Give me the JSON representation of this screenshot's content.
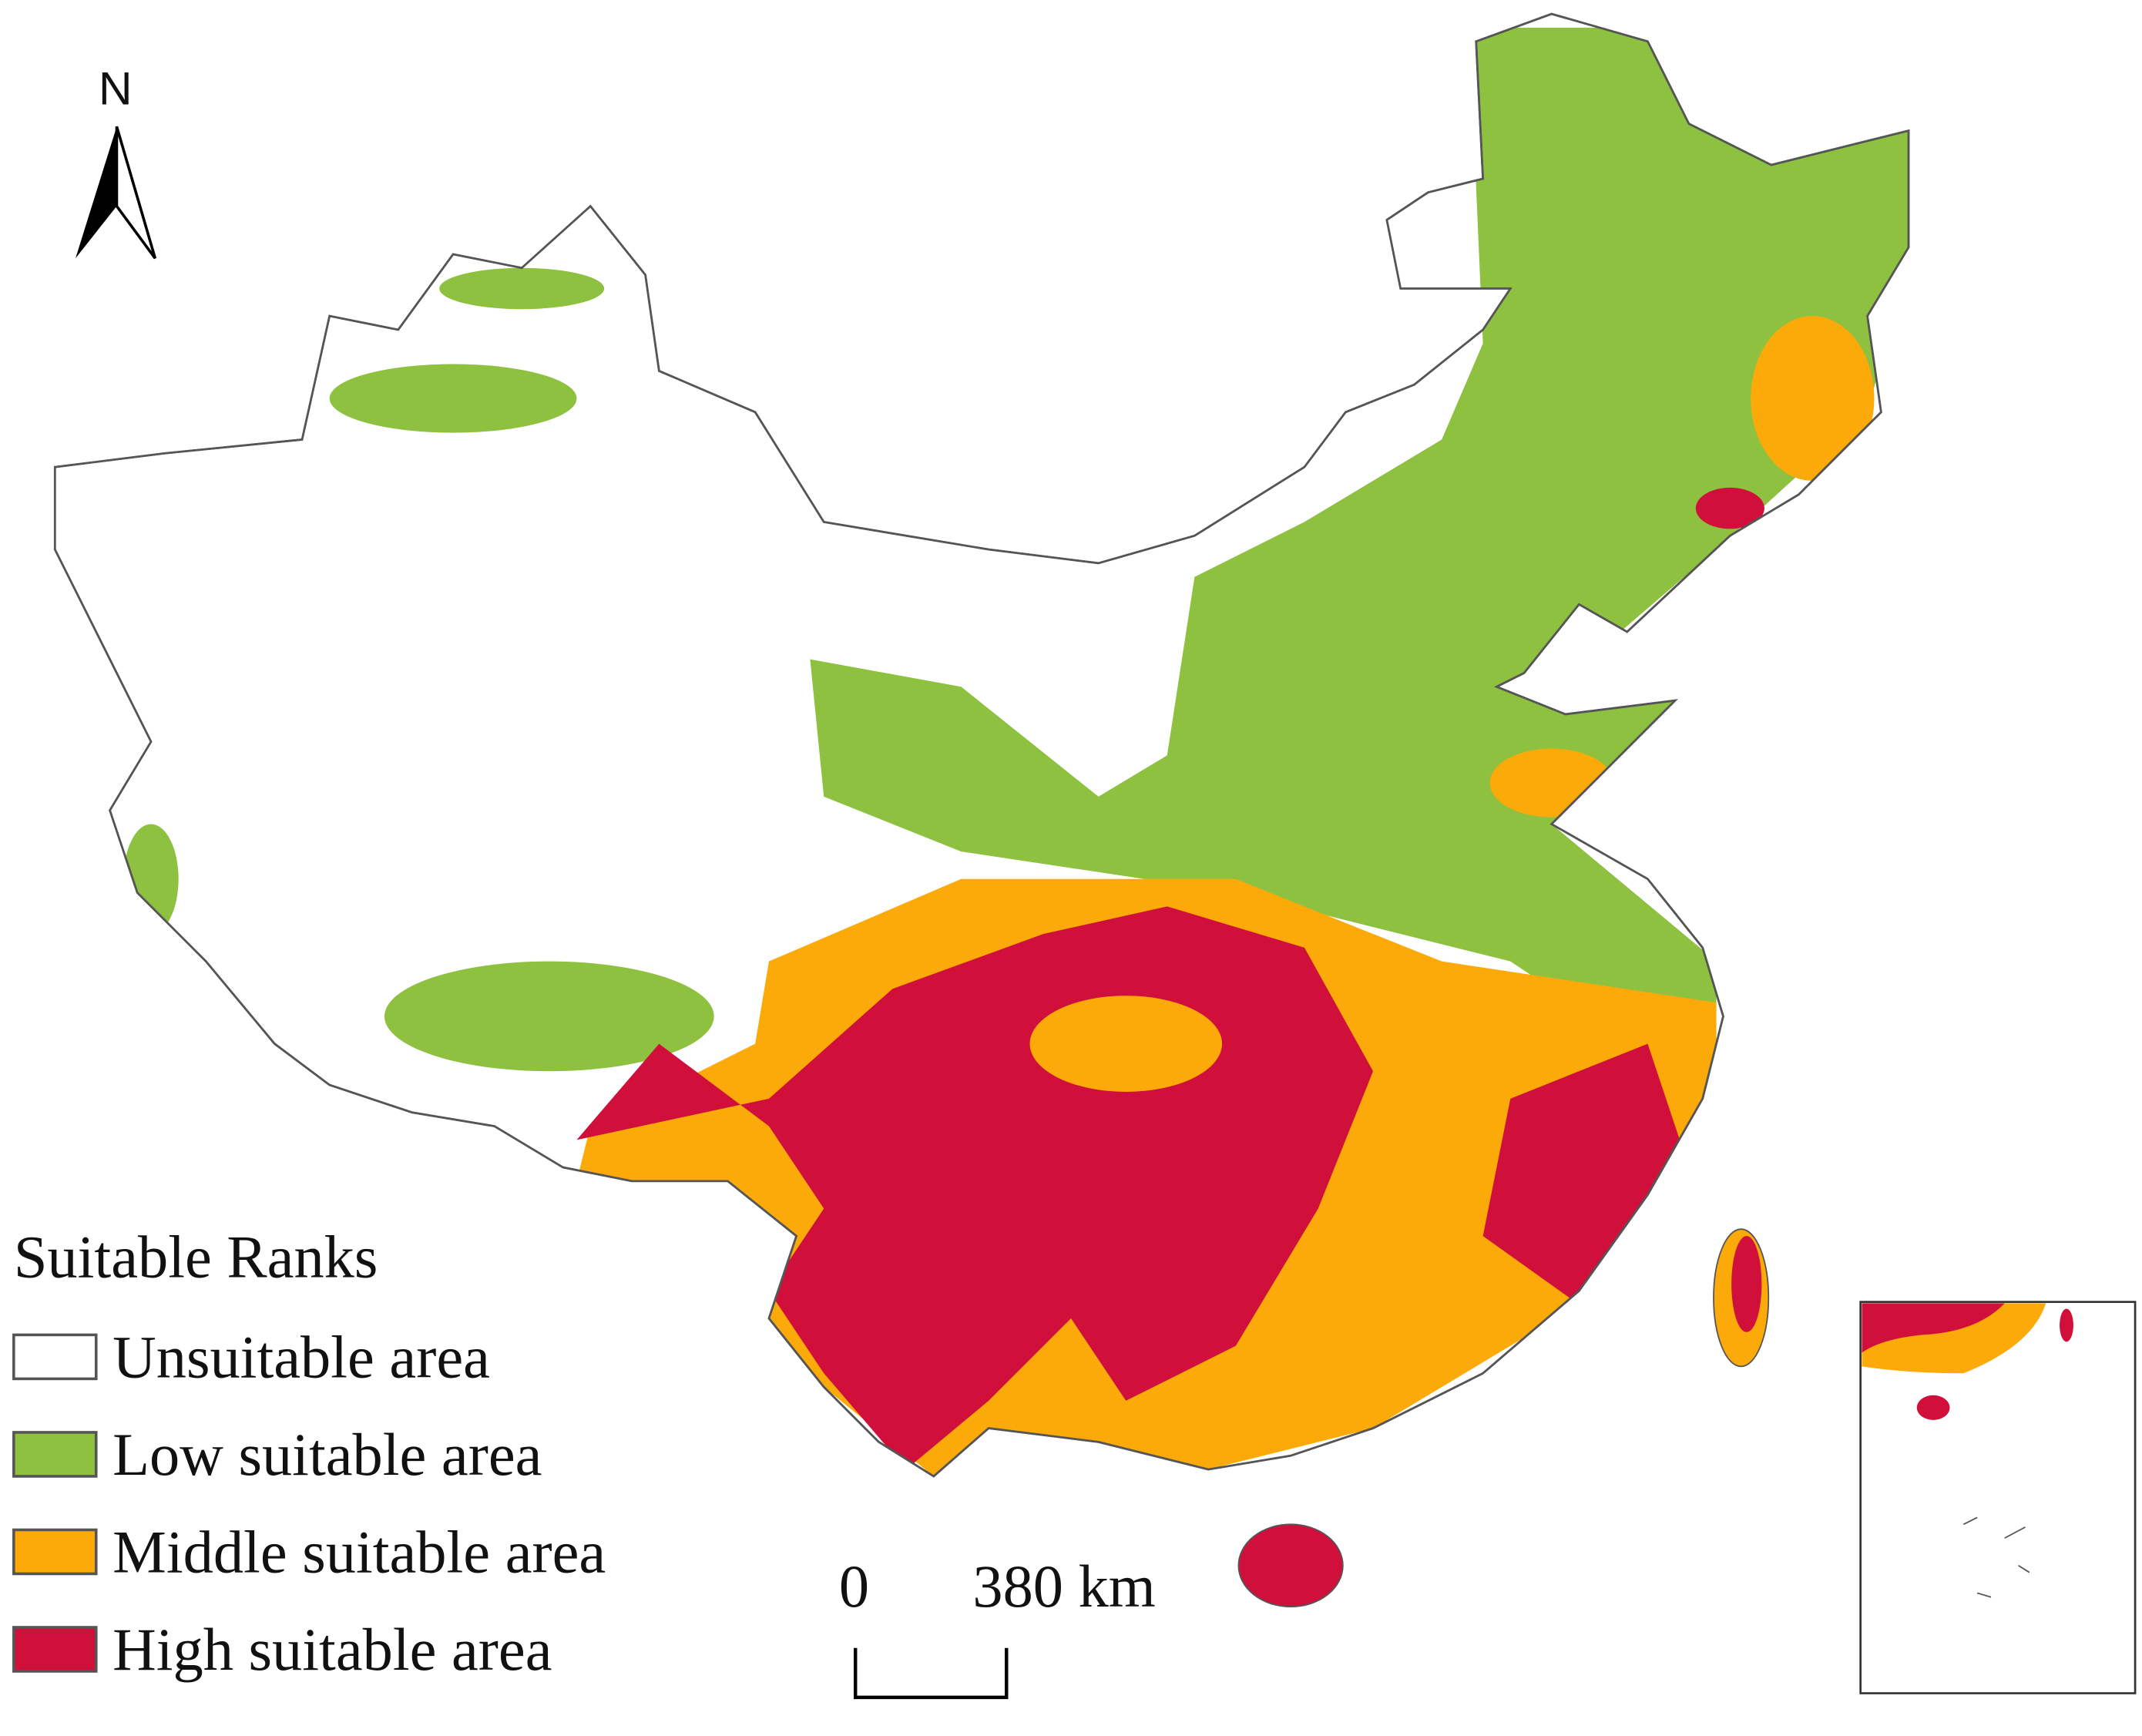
{
  "north_arrow": {
    "label": "N"
  },
  "legend": {
    "title": "Suitable Ranks",
    "items": [
      {
        "label": "Unsuitable area",
        "color": "#ffffff"
      },
      {
        "label": "Low suitable area",
        "color": "#8dc13f"
      },
      {
        "label": "Middle suitable area",
        "color": "#fca90a"
      },
      {
        "label": "High suitable area",
        "color": "#d0103a"
      }
    ]
  },
  "scale_bar": {
    "start": "0",
    "end": "380 km"
  }
}
